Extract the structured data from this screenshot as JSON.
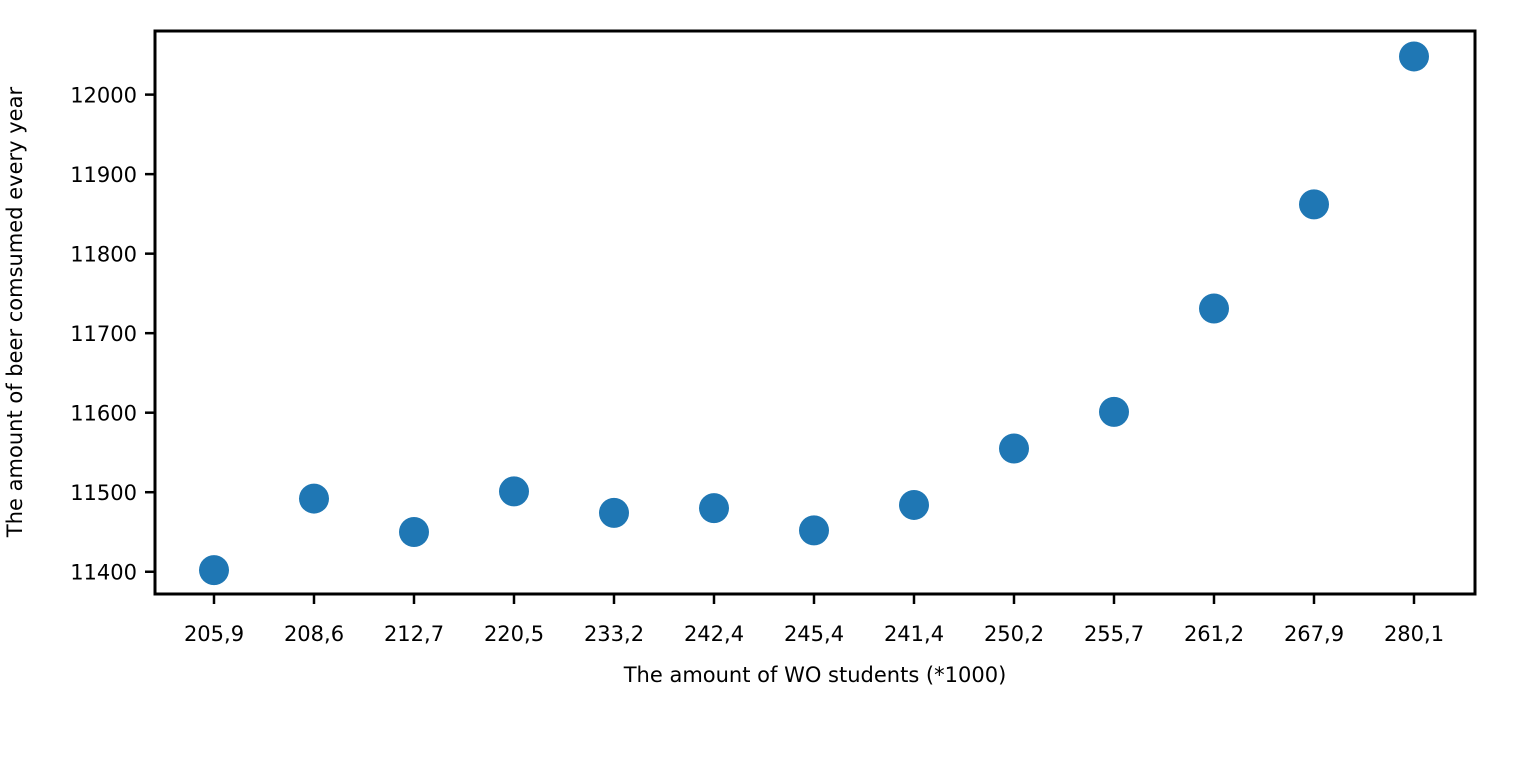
{
  "chart_data": {
    "type": "scatter",
    "xlabel": "The amount of WO students (*1000)",
    "ylabel": "The amount of beer comsumed every year",
    "categories": [
      "205,9",
      "208,6",
      "212,7",
      "220,5",
      "233,2",
      "242,4",
      "245,4",
      "241,4",
      "250,2",
      "255,7",
      "261,2",
      "267,9",
      "280,1"
    ],
    "series": [
      {
        "values": [
          11402,
          11492,
          11450,
          11501,
          11474,
          11480,
          11452,
          11484,
          11555,
          11601,
          11731,
          11862,
          12048
        ]
      }
    ],
    "yticks": [
      11400,
      11500,
      11600,
      11700,
      11800,
      11900,
      12000
    ],
    "ylim": [
      11372,
      12080
    ],
    "grid": false,
    "point_color": "#1f77b4"
  }
}
